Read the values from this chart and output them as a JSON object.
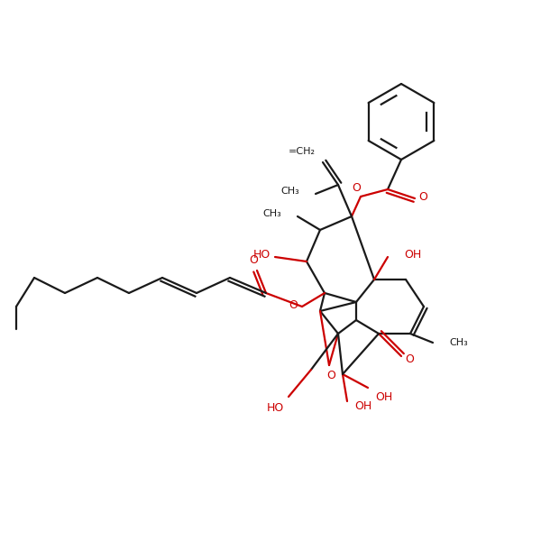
{
  "bg_color": "#ffffff",
  "bond_color": "#1a1a1a",
  "heteroatom_color": "#cc0000",
  "lw": 1.6,
  "figsize": [
    6.0,
    6.0
  ],
  "dpi": 100,
  "xlim": [
    0,
    600
  ],
  "ylim": [
    0,
    600
  ]
}
